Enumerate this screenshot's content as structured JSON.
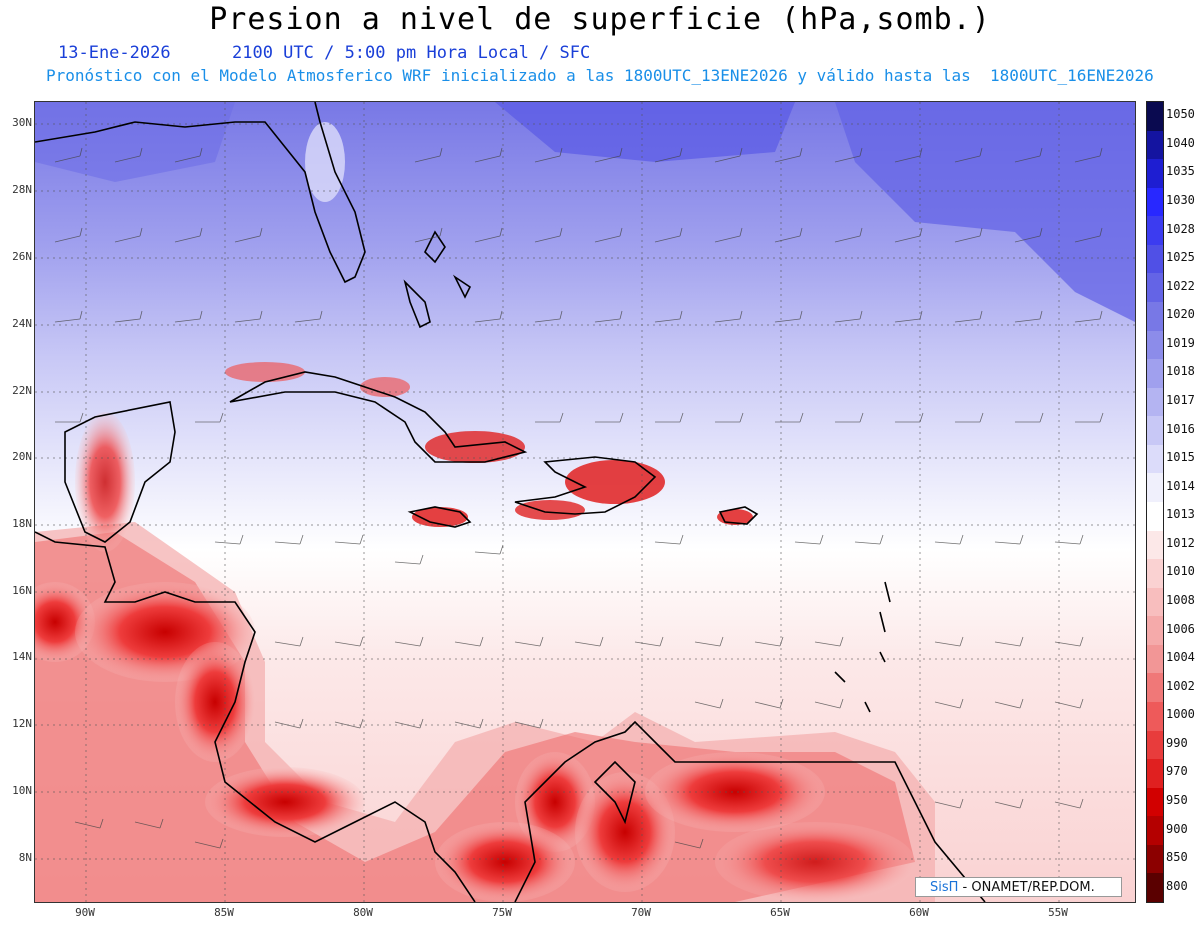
{
  "header": {
    "title": "Presion a nivel de superficie (hPa,somb.)",
    "date_line": "13-Ene-2026      2100 UTC / 5:00 pm Hora Local / SFC",
    "forecast_line": "Pronóstico con el Modelo Atmosferico WRF inicializado a las 1800UTC_13ENE2026 y válido hasta las  1800UTC_16ENE2026"
  },
  "latitudes": [
    "30N",
    "28N",
    "26N",
    "24N",
    "22N",
    "20N",
    "18N",
    "16N",
    "14N",
    "12N",
    "10N",
    "8N"
  ],
  "longitudes": [
    "90W",
    "85W",
    "80W",
    "75W",
    "70W",
    "65W",
    "60W",
    "55W"
  ],
  "colorbar": {
    "levels": [
      "1050",
      "1040",
      "1035",
      "1030",
      "1028",
      "1025",
      "1022",
      "1020",
      "1019",
      "1018",
      "1017",
      "1016",
      "1015",
      "1014",
      "1013",
      "1012",
      "1010",
      "1008",
      "1006",
      "1004",
      "1002",
      "1000",
      "990",
      "970",
      "950",
      "900",
      "850",
      "800"
    ],
    "colors": [
      "#0a0a50",
      "#1414a0",
      "#1e1ed2",
      "#2828ff",
      "#3c3cf0",
      "#5050e6",
      "#6464e6",
      "#7878e6",
      "#8c8cea",
      "#a0a0ee",
      "#b4b4f2",
      "#c8c8f6",
      "#dcdcfa",
      "#f0f0fc",
      "#ffffff",
      "#fce8e8",
      "#fad2d2",
      "#f8bebe",
      "#f5aaaa",
      "#f29696",
      "#f07878",
      "#ee5a5a",
      "#e83c3c",
      "#e02020",
      "#d20000",
      "#b40000",
      "#8c0000",
      "#5a0000"
    ]
  },
  "credit": {
    "brand": "SisΠ",
    "text": " - ONAMET/REP.DOM."
  }
}
